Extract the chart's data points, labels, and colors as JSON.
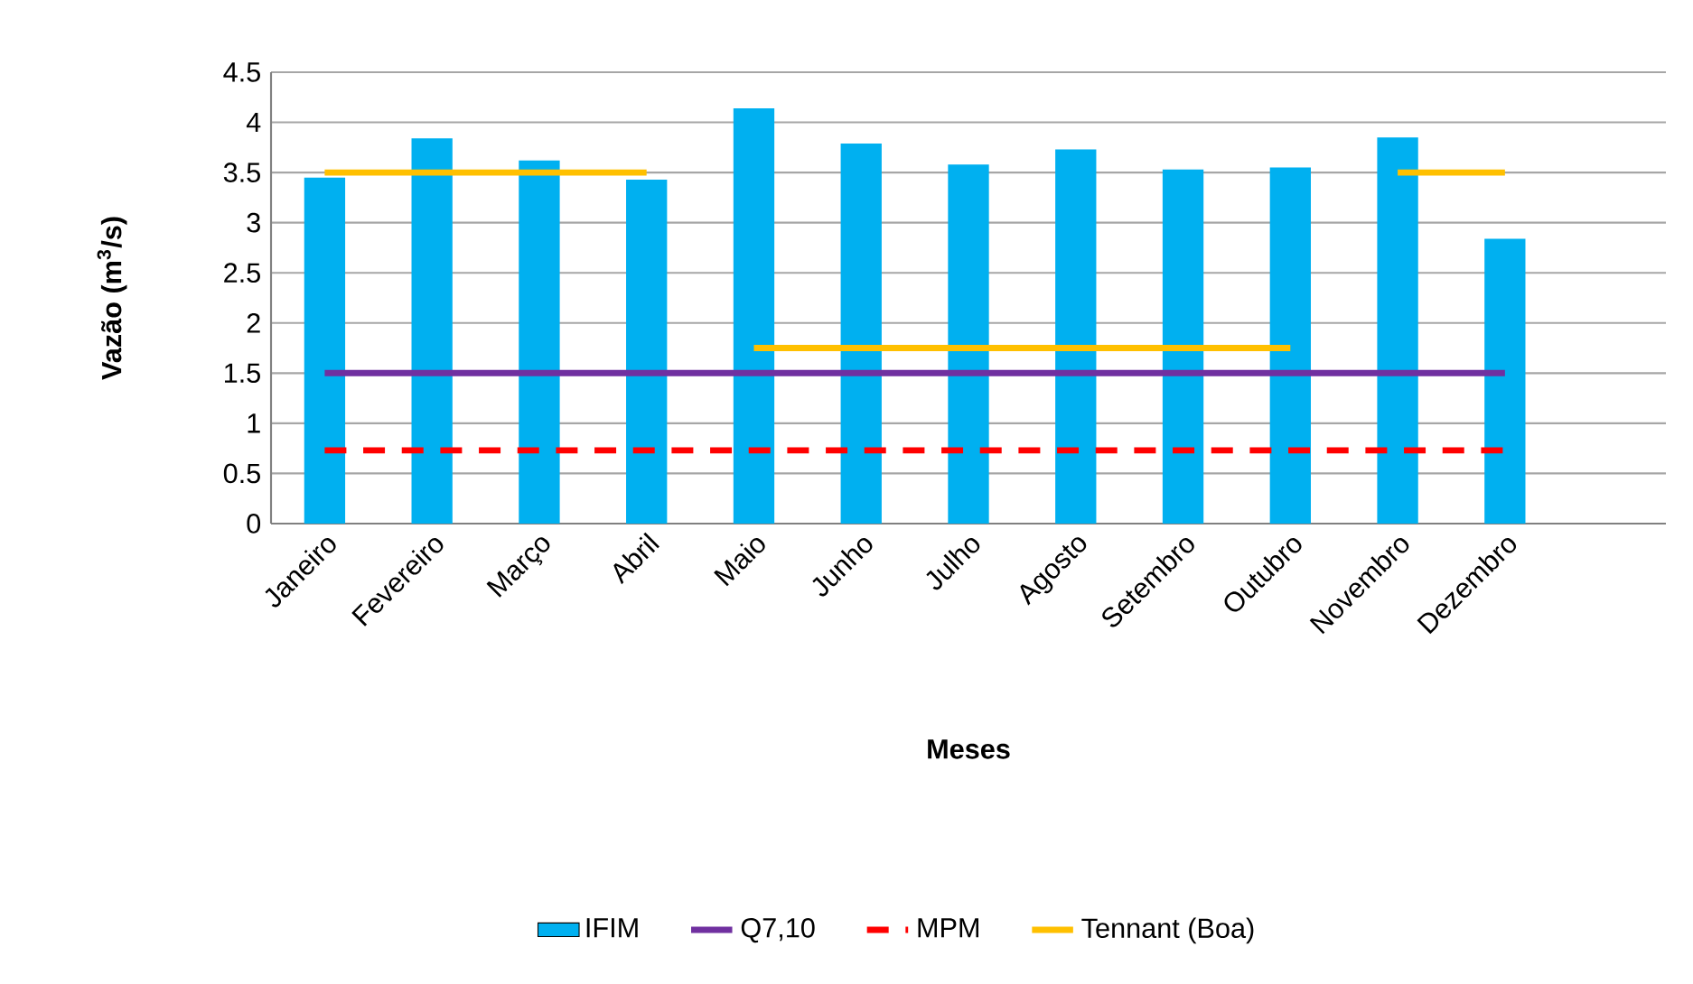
{
  "chart_data": {
    "type": "bar",
    "xlabel": "**Meses**",
    "ylabel": "**Vazão (m$^{3}$/s)**",
    "categories": [
      "Janeiro",
      "Fevereiro",
      "Março",
      "Abril",
      "Maio",
      "Junho",
      "Julho",
      "Agosto",
      "Setembro",
      "Outubro",
      "Novembro",
      "Dezembro",
      null
    ],
    "ylim": [
      0,
      4.5
    ],
    "yticks": [
      0,
      0.5,
      1,
      1.5,
      2,
      2.5,
      3,
      3.5,
      4,
      4.5
    ],
    "grid": "y",
    "legend": "bottom",
    "marker": "none",
    "series": [
      {
        "name": "IFIM",
        "color": "#00b0f0",
        "values": [
          3.45,
          3.84,
          3.62,
          3.43,
          4.14,
          3.79,
          3.58,
          3.73,
          3.53,
          3.55,
          3.85,
          2.84,
          null
        ]
      },
      {
        "name": "Q7,10",
        "type": "line",
        "color": "#7030a0",
        "line_style": "solid",
        "values": [
          1.5,
          1.5,
          1.5,
          1.5,
          1.5,
          1.5,
          1.5,
          1.5,
          1.5,
          1.5,
          1.5,
          1.5,
          null
        ]
      },
      {
        "name": "MPM",
        "type": "line",
        "color": "#ff0000",
        "line_style": "dashed",
        "values": [
          0.73,
          0.73,
          0.73,
          0.73,
          0.73,
          0.73,
          0.73,
          0.73,
          0.73,
          0.73,
          0.73,
          0.73,
          null
        ]
      },
      {
        "name": "Tennant (Boa)",
        "type": "line",
        "color": "#ffc000",
        "line_style": "solid",
        "values": [
          3.5,
          3.5,
          3.5,
          3.5,
          null,
          null,
          null,
          null,
          null,
          null,
          null,
          null,
          null
        ]
      },
      {
        "type": "line",
        "color": "#ffc000",
        "line_style": "solid",
        "values": [
          null,
          null,
          null,
          null,
          1.75,
          1.75,
          1.75,
          1.75,
          1.75,
          1.75,
          null,
          null,
          null
        ]
      },
      {
        "type": "line",
        "color": "#ffc000",
        "line_style": "solid",
        "values": [
          null,
          null,
          null,
          null,
          null,
          null,
          null,
          null,
          null,
          null,
          3.5,
          3.5,
          null
        ]
      }
    ]
  }
}
